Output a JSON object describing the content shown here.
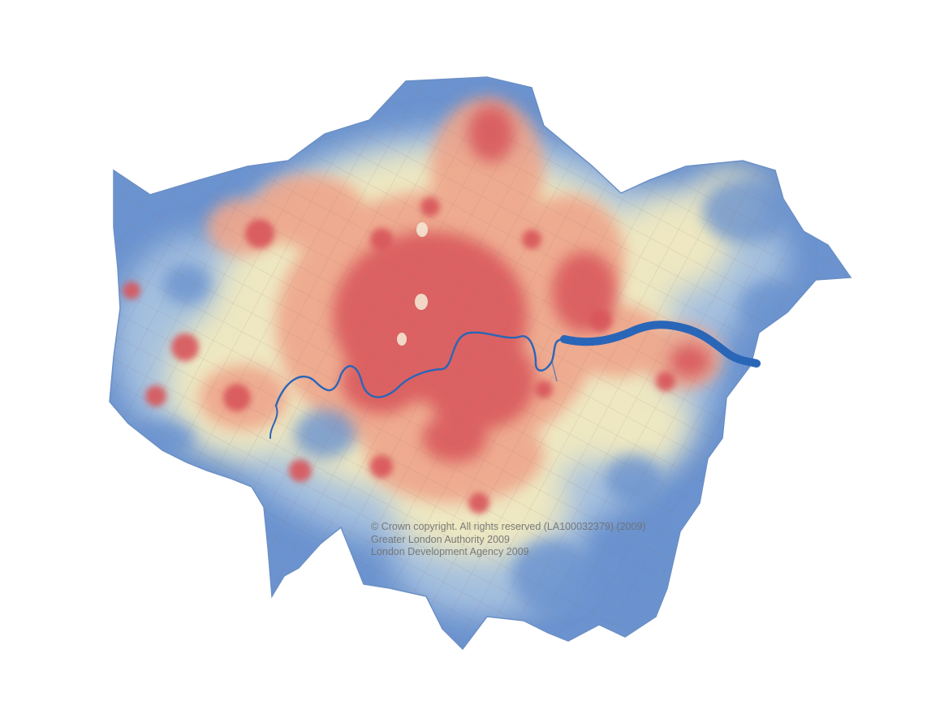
{
  "map": {
    "copyright_lines": [
      "© Crown copyright. All rights reserved (LA100032379) (2009)",
      "Greater London Authority 2009",
      "London Development Agency 2009"
    ],
    "palette": {
      "low": "#6b93cf",
      "low_mid": "#a9c3e0",
      "mid": "#f2eac0",
      "high_mid": "#eea58b",
      "high": "#d9555a",
      "river": "#2a66b8"
    }
  }
}
